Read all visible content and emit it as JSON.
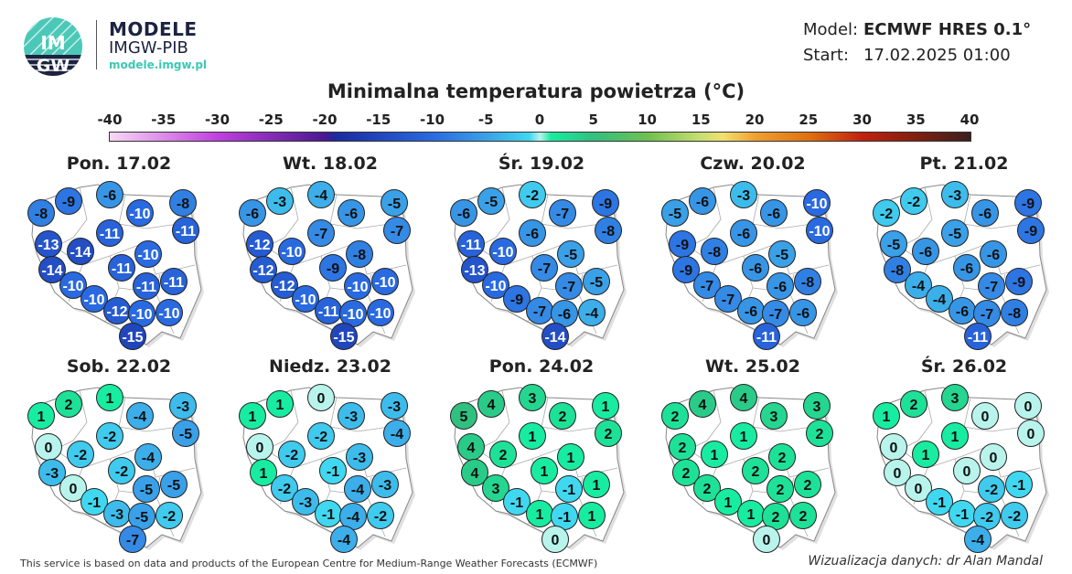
{
  "brand": {
    "name": "MODELE",
    "org": "IMGW-PIB",
    "url": "modele.imgw.pl",
    "logo_text": "IMGW"
  },
  "meta": {
    "model_label": "Model:",
    "model_value": "ECMWF HRES 0.1°",
    "start_label": "Start:",
    "start_value": "17.02.2025 01:00"
  },
  "title": "Minimalna temperatura powietrza (°C)",
  "colorbar": {
    "ticks": [
      "-40",
      "-35",
      "-30",
      "-25",
      "-20",
      "-15",
      "-10",
      "-5",
      "0",
      "5",
      "10",
      "15",
      "20",
      "25",
      "30",
      "35",
      "40"
    ],
    "stops": [
      [
        -40,
        "#f8d8f4"
      ],
      [
        -30,
        "#c040e0"
      ],
      [
        -20,
        "#4a1890"
      ],
      [
        -19,
        "#1a2aa0"
      ],
      [
        -10,
        "#2a6ae0"
      ],
      [
        -5,
        "#3aa0e8"
      ],
      [
        -1,
        "#40d8f0"
      ],
      [
        0,
        "#b8f4ec"
      ],
      [
        1,
        "#18eca0"
      ],
      [
        5,
        "#30c080"
      ],
      [
        10,
        "#70c050"
      ],
      [
        15,
        "#c8e070"
      ],
      [
        17,
        "#f0e070"
      ],
      [
        20,
        "#f0a030"
      ],
      [
        25,
        "#e07010"
      ],
      [
        30,
        "#c02010"
      ],
      [
        35,
        "#802010"
      ],
      [
        40,
        "#3a2020"
      ]
    ]
  },
  "days": [
    {
      "label": "Pon. 17.02",
      "values": [
        -8,
        -9,
        -6,
        -10,
        -8,
        -11,
        -11,
        -13,
        -14,
        -10,
        -14,
        -11,
        -10,
        -11,
        -11,
        -10,
        -12,
        -10,
        -10,
        -15
      ]
    },
    {
      "label": "Wt. 18.02",
      "values": [
        -6,
        -3,
        -4,
        -6,
        -5,
        -7,
        -7,
        -12,
        -10,
        -8,
        -12,
        -9,
        -12,
        -10,
        -10,
        -10,
        -11,
        -10,
        -10,
        -15
      ]
    },
    {
      "label": "Śr. 19.02",
      "values": [
        -6,
        -5,
        -2,
        -7,
        -9,
        -8,
        -6,
        -11,
        -10,
        -5,
        -13,
        -7,
        -10,
        -7,
        -5,
        -9,
        -7,
        -6,
        -4,
        -14
      ]
    },
    {
      "label": "Czw. 20.02",
      "values": [
        -5,
        -6,
        -3,
        -6,
        -10,
        -10,
        -6,
        -9,
        -8,
        -5,
        -9,
        -6,
        -7,
        -6,
        -8,
        -7,
        -6,
        -7,
        -6,
        -11
      ]
    },
    {
      "label": "Pt. 21.02",
      "values": [
        -2,
        -2,
        -3,
        -6,
        -9,
        -9,
        -5,
        -5,
        -6,
        -6,
        -8,
        -6,
        -4,
        -7,
        -9,
        -4,
        -6,
        -7,
        -8,
        -11
      ]
    },
    {
      "label": "Sob. 22.02",
      "values": [
        1,
        2,
        1,
        -4,
        -3,
        -5,
        -2,
        0,
        -2,
        -4,
        -3,
        -2,
        0,
        -5,
        -5,
        -1,
        -3,
        -5,
        -2,
        -7
      ]
    },
    {
      "label": "Niedz. 23.02",
      "values": [
        1,
        1,
        0,
        -3,
        -3,
        -4,
        -2,
        0,
        -2,
        -3,
        1,
        -1,
        -2,
        -4,
        -3,
        -3,
        -1,
        -4,
        -2,
        -4
      ]
    },
    {
      "label": "Pon. 24.02",
      "values": [
        5,
        4,
        3,
        2,
        1,
        2,
        1,
        4,
        2,
        1,
        4,
        1,
        3,
        -1,
        1,
        -1,
        1,
        -1,
        1,
        0
      ]
    },
    {
      "label": "Wt. 25.02",
      "values": [
        2,
        4,
        4,
        3,
        3,
        2,
        1,
        2,
        1,
        2,
        2,
        2,
        2,
        2,
        2,
        1,
        1,
        2,
        2,
        0
      ]
    },
    {
      "label": "Śr. 26.02",
      "values": [
        1,
        2,
        3,
        0,
        0,
        0,
        1,
        0,
        1,
        0,
        0,
        0,
        0,
        -2,
        -1,
        -1,
        -1,
        -2,
        -2,
        -4
      ]
    }
  ],
  "footer": "This service is based on data and products of the European Centre for Medium-Range Weather Forecasts (ECMWF)",
  "credit": "Wizualizacja danych: dr Alan Mandal"
}
